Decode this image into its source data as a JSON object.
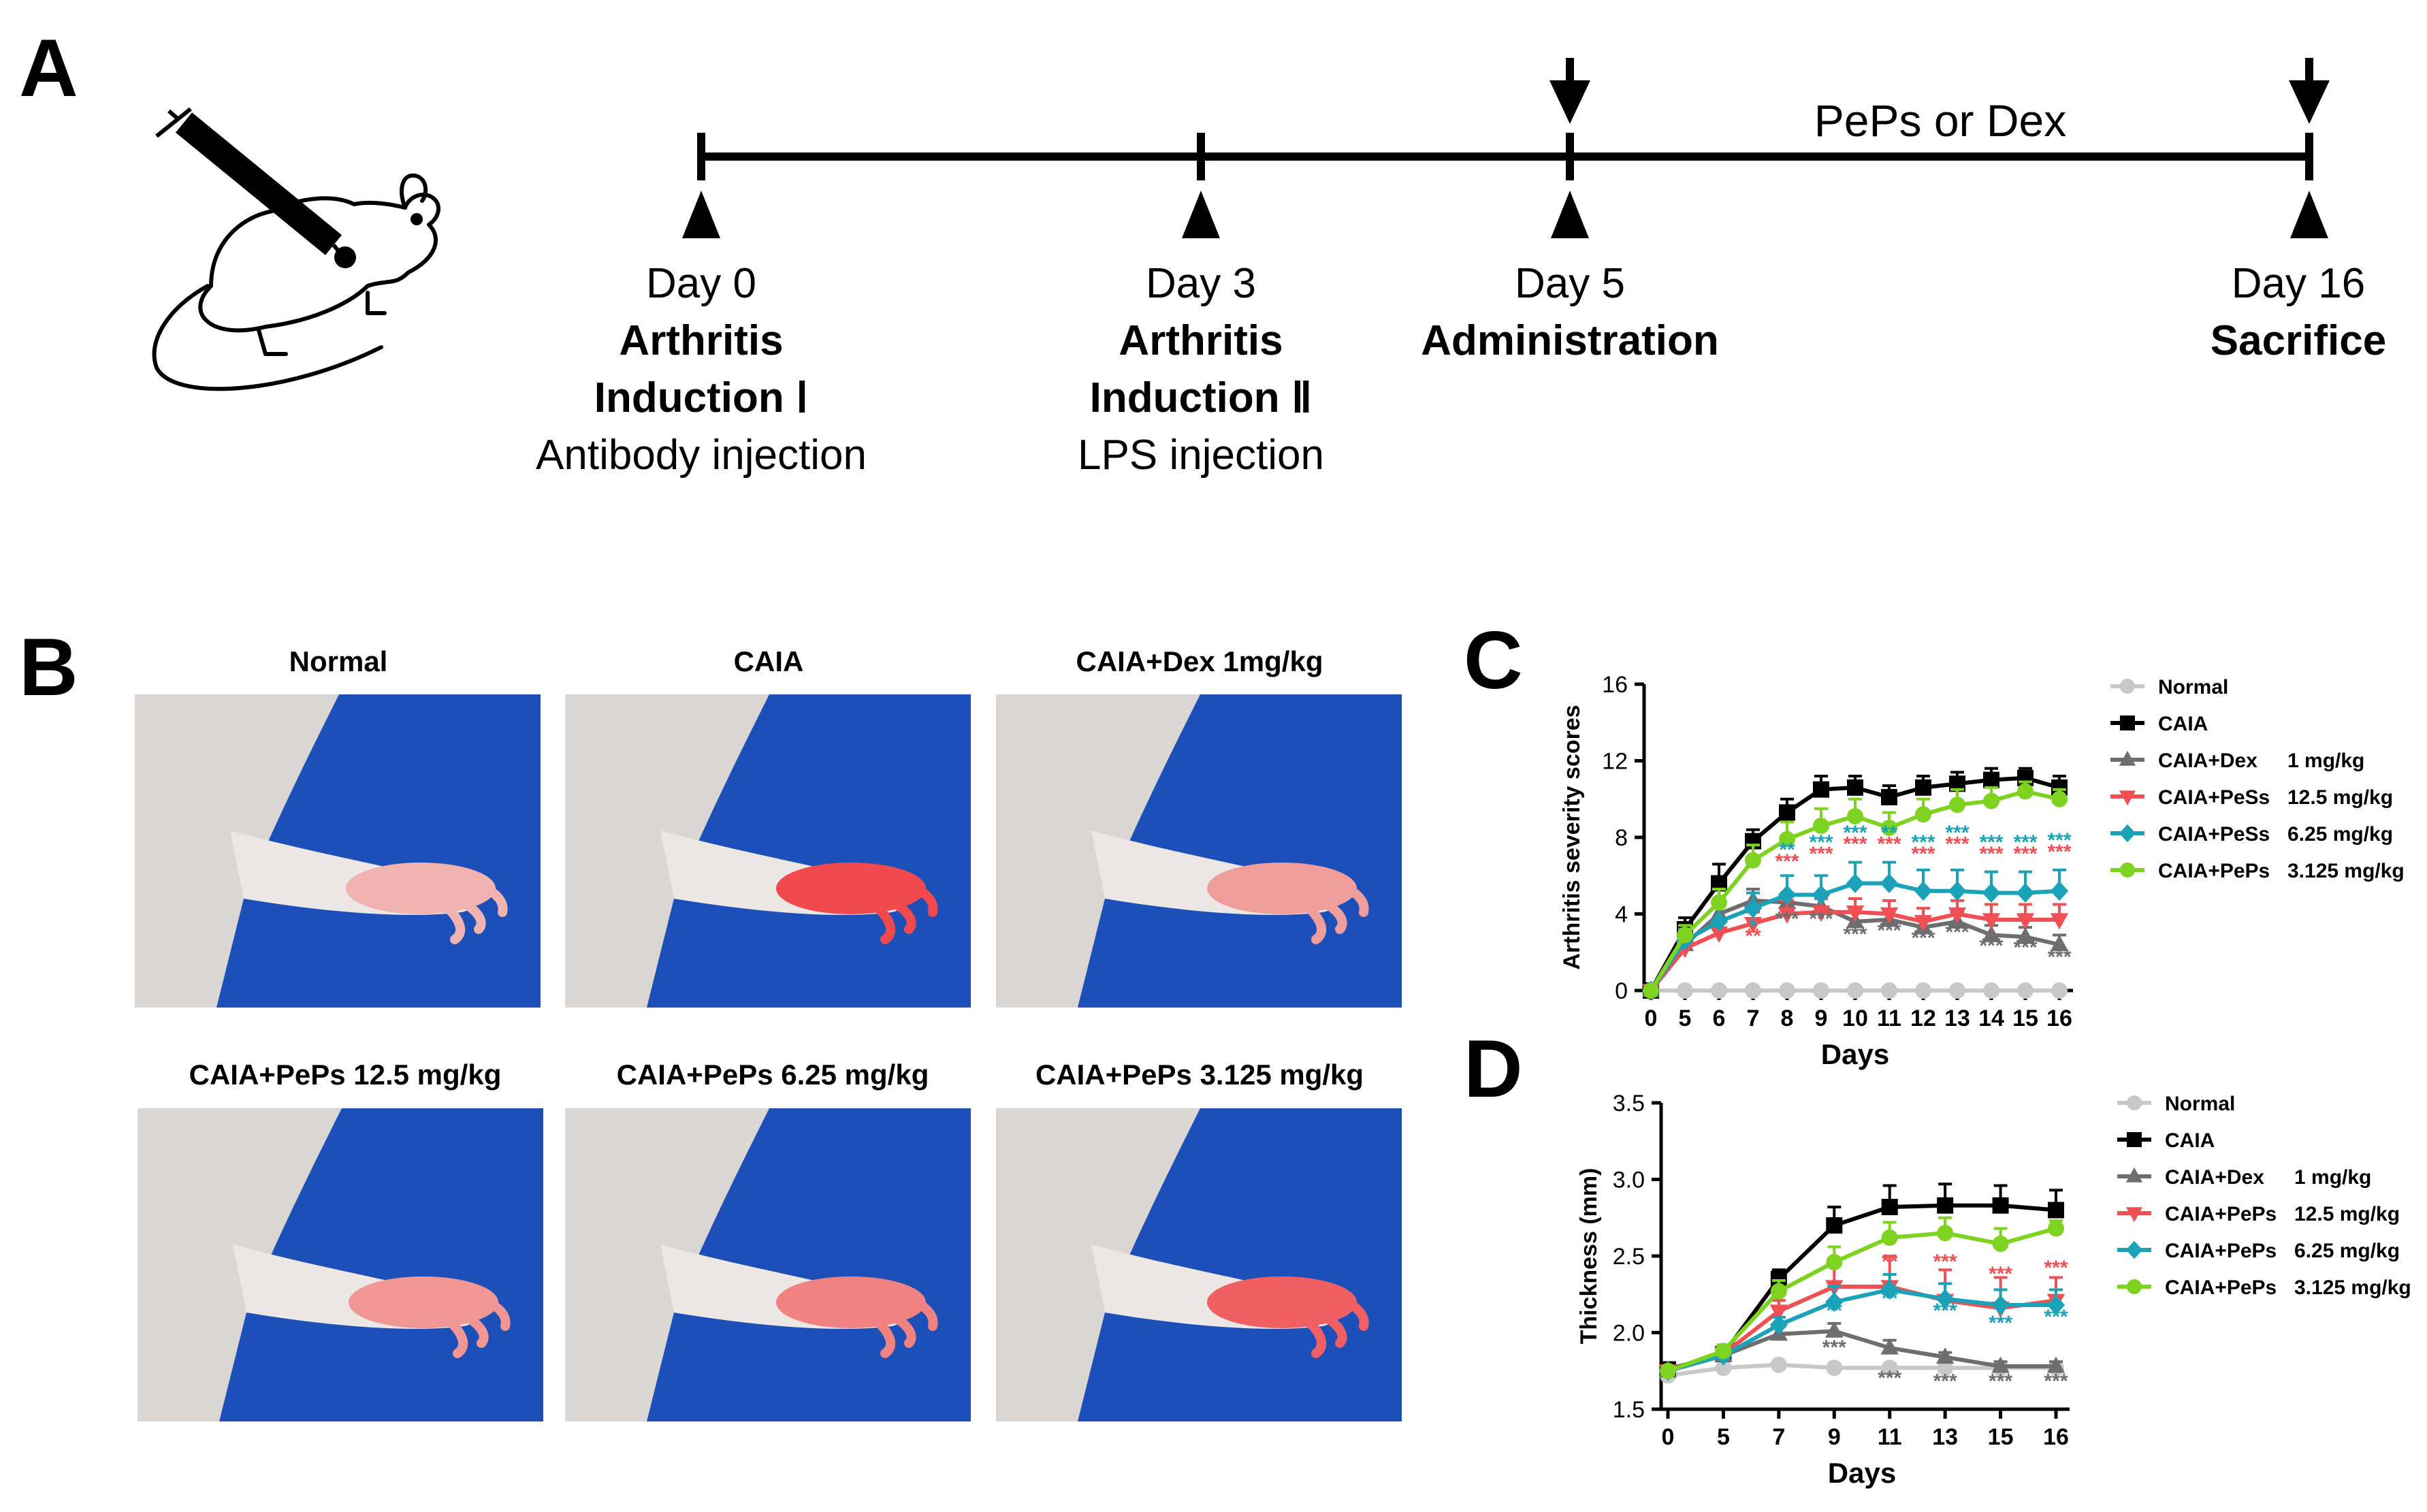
{
  "panel_labels": {
    "a": "A",
    "b": "B",
    "c": "C",
    "d": "D"
  },
  "timeline": {
    "between_label": "PePs or Dex",
    "events": [
      {
        "day": "Day 0",
        "line1": "Arthritis",
        "line2": "Induction Ⅰ",
        "line3": "Antibody injection"
      },
      {
        "day": "Day 3",
        "line1": "Arthritis",
        "line2": "Induction Ⅱ",
        "line3": "LPS injection"
      },
      {
        "day": "Day 5",
        "line1": "Administration",
        "line2": "",
        "line3": ""
      },
      {
        "day": "Day 16",
        "line1": "Sacrifice",
        "line2": "",
        "line3": ""
      }
    ]
  },
  "photos": [
    {
      "label": "Normal",
      "redness": 0.15
    },
    {
      "label": "CAIA",
      "redness": 0.9
    },
    {
      "label": "CAIA+Dex 1mg/kg",
      "redness": 0.3
    },
    {
      "label": "CAIA+PePs 12.5 mg/kg",
      "redness": 0.35
    },
    {
      "label": "CAIA+PePs 6.25 mg/kg",
      "redness": 0.5
    },
    {
      "label": "CAIA+PePs 3.125 mg/kg",
      "redness": 0.75
    }
  ],
  "colors": {
    "normal": "#c8c8c8",
    "caia": "#000000",
    "dex": "#6e6e6e",
    "high": "#f05054",
    "mid": "#1aa3b8",
    "low": "#7ed321",
    "blue_bg": "#1d4fb8"
  },
  "chart_data": [
    {
      "type": "line",
      "xlabel": "Days",
      "ylabel": "Arthritis severity scores",
      "x": [
        0,
        5,
        6,
        7,
        8,
        9,
        10,
        11,
        12,
        13,
        14,
        15,
        16
      ],
      "ylim": [
        0,
        16
      ],
      "yticks": [
        0,
        4,
        8,
        12,
        16
      ],
      "legend_position": "right",
      "series": [
        {
          "name": "Normal",
          "dose": "",
          "marker": "circle",
          "color": "#c8c8c8",
          "values": [
            0,
            0,
            0,
            0,
            0,
            0,
            0,
            0,
            0,
            0,
            0,
            0,
            0
          ],
          "err": [
            0,
            0,
            0,
            0,
            0,
            0,
            0,
            0,
            0,
            0,
            0,
            0,
            0
          ]
        },
        {
          "name": "CAIA",
          "dose": "",
          "marker": "square",
          "color": "#000000",
          "values": [
            0,
            3.2,
            5.6,
            7.8,
            9.3,
            10.5,
            10.6,
            10.1,
            10.6,
            10.8,
            11,
            11.1,
            10.6
          ],
          "err": [
            0,
            0.6,
            1,
            0.6,
            0.7,
            0.7,
            0.6,
            0.6,
            0.6,
            0.6,
            0.6,
            0.5,
            0.6
          ]
        },
        {
          "name": "CAIA+Dex",
          "dose": "1 mg/kg",
          "marker": "triangle-up",
          "color": "#6e6e6e",
          "values": [
            0,
            2.4,
            4.0,
            4.7,
            4.6,
            4.4,
            3.6,
            3.7,
            3.3,
            3.6,
            2.9,
            2.8,
            2.4
          ],
          "err": [
            0,
            0.5,
            0.7,
            0.6,
            0.5,
            0.5,
            0.5,
            0.5,
            0.5,
            0.5,
            0.5,
            0.5,
            0.5
          ]
        },
        {
          "name": "CAIA+PeSs",
          "dose": "12.5 mg/kg",
          "marker": "triangle-down",
          "color": "#f05054",
          "values": [
            0,
            2.2,
            3.0,
            3.5,
            4.0,
            4.1,
            4.1,
            4.0,
            3.6,
            4.0,
            3.7,
            3.7,
            3.7
          ],
          "err": [
            0,
            0.5,
            0.6,
            0.6,
            0.7,
            0.7,
            0.7,
            0.7,
            0.7,
            0.7,
            0.8,
            0.8,
            0.8
          ]
        },
        {
          "name": "CAIA+PeSs",
          "dose": "6.25 mg/kg",
          "marker": "diamond",
          "color": "#1aa3b8",
          "values": [
            0,
            2.6,
            3.6,
            4.3,
            5.0,
            5.0,
            5.6,
            5.6,
            5.2,
            5.2,
            5.1,
            5.1,
            5.2
          ],
          "err": [
            0,
            0.6,
            0.8,
            0.8,
            1.0,
            1.0,
            1.1,
            1.1,
            1.1,
            1.1,
            1.1,
            1.1,
            1.1
          ]
        },
        {
          "name": "CAIA+PePs",
          "dose": "3.125 mg/kg",
          "marker": "circle",
          "color": "#7ed321",
          "values": [
            0,
            2.9,
            4.6,
            6.8,
            7.9,
            8.6,
            9.1,
            8.5,
            9.2,
            9.7,
            9.9,
            10.4,
            10.0
          ],
          "err": [
            0,
            0.5,
            0.7,
            0.8,
            0.9,
            0.9,
            0.9,
            0.8,
            0.8,
            0.8,
            0.7,
            0.5,
            0.5
          ]
        }
      ],
      "significance": [
        {
          "x": 7,
          "y": 3.0,
          "text": "*",
          "color": "#1aa3b8"
        },
        {
          "x": 7,
          "y": 2.5,
          "text": "**",
          "color": "#f05054"
        },
        {
          "x": 8,
          "y": 7.0,
          "text": "**",
          "color": "#1aa3b8"
        },
        {
          "x": 8,
          "y": 6.4,
          "text": "***",
          "color": "#f05054"
        },
        {
          "x": 8,
          "y": 3.4,
          "text": "***",
          "color": "#6e6e6e"
        },
        {
          "x": 9,
          "y": 7.4,
          "text": "***",
          "color": "#1aa3b8"
        },
        {
          "x": 9,
          "y": 6.8,
          "text": "***",
          "color": "#f05054"
        },
        {
          "x": 9,
          "y": 3.4,
          "text": "***",
          "color": "#6e6e6e"
        },
        {
          "x": 10,
          "y": 7.9,
          "text": "***",
          "color": "#1aa3b8"
        },
        {
          "x": 10,
          "y": 7.3,
          "text": "***",
          "color": "#f05054"
        },
        {
          "x": 10,
          "y": 2.6,
          "text": "***",
          "color": "#6e6e6e"
        },
        {
          "x": 11,
          "y": 7.9,
          "text": "**",
          "color": "#1aa3b8"
        },
        {
          "x": 11,
          "y": 7.3,
          "text": "***",
          "color": "#f05054"
        },
        {
          "x": 11,
          "y": 2.8,
          "text": "***",
          "color": "#6e6e6e"
        },
        {
          "x": 12,
          "y": 7.4,
          "text": "***",
          "color": "#1aa3b8"
        },
        {
          "x": 12,
          "y": 6.8,
          "text": "***",
          "color": "#f05054"
        },
        {
          "x": 12,
          "y": 2.4,
          "text": "***",
          "color": "#6e6e6e"
        },
        {
          "x": 13,
          "y": 7.9,
          "text": "***",
          "color": "#1aa3b8"
        },
        {
          "x": 13,
          "y": 7.3,
          "text": "***",
          "color": "#f05054"
        },
        {
          "x": 13,
          "y": 2.7,
          "text": "***",
          "color": "#6e6e6e"
        },
        {
          "x": 14,
          "y": 7.4,
          "text": "***",
          "color": "#1aa3b8"
        },
        {
          "x": 14,
          "y": 6.8,
          "text": "***",
          "color": "#f05054"
        },
        {
          "x": 14,
          "y": 2.0,
          "text": "***",
          "color": "#6e6e6e"
        },
        {
          "x": 15,
          "y": 7.4,
          "text": "***",
          "color": "#1aa3b8"
        },
        {
          "x": 15,
          "y": 6.8,
          "text": "***",
          "color": "#f05054"
        },
        {
          "x": 15,
          "y": 1.9,
          "text": "***",
          "color": "#6e6e6e"
        },
        {
          "x": 16,
          "y": 7.5,
          "text": "***",
          "color": "#1aa3b8"
        },
        {
          "x": 16,
          "y": 6.9,
          "text": "***",
          "color": "#f05054"
        },
        {
          "x": 16,
          "y": 1.4,
          "text": "***",
          "color": "#6e6e6e"
        }
      ]
    },
    {
      "type": "line",
      "xlabel": "Days",
      "ylabel": "Thickness (mm)",
      "x": [
        0,
        5,
        7,
        9,
        11,
        13,
        15,
        16
      ],
      "ylim": [
        1.5,
        3.5
      ],
      "yticks": [
        1.5,
        2.0,
        2.5,
        3.0,
        3.5
      ],
      "legend_position": "right",
      "series": [
        {
          "name": "Normal",
          "dose": "",
          "marker": "circle",
          "color": "#c8c8c8",
          "values": [
            1.72,
            1.77,
            1.79,
            1.77,
            1.77,
            1.77,
            1.77,
            1.77
          ],
          "err": [
            0.02,
            0.02,
            0.02,
            0.02,
            0.02,
            0.02,
            0.02,
            0.02
          ]
        },
        {
          "name": "CAIA",
          "dose": "",
          "marker": "square",
          "color": "#000000",
          "values": [
            1.76,
            1.86,
            2.35,
            2.7,
            2.82,
            2.83,
            2.83,
            2.8
          ],
          "err": [
            0.02,
            0.04,
            0.06,
            0.12,
            0.14,
            0.14,
            0.13,
            0.13
          ]
        },
        {
          "name": "CAIA+Dex",
          "dose": "1 mg/kg",
          "marker": "triangle-up",
          "color": "#6e6e6e",
          "values": [
            1.75,
            1.85,
            1.99,
            2.01,
            1.9,
            1.84,
            1.78,
            1.78
          ],
          "err": [
            0.02,
            0.03,
            0.05,
            0.05,
            0.05,
            0.03,
            0.03,
            0.03
          ]
        },
        {
          "name": "CAIA+PePs",
          "dose": "12.5 mg/kg",
          "marker": "triangle-down",
          "color": "#f05054",
          "values": [
            1.75,
            1.86,
            2.14,
            2.3,
            2.3,
            2.21,
            2.16,
            2.21
          ],
          "err": [
            0.02,
            0.03,
            0.07,
            0.15,
            0.2,
            0.2,
            0.2,
            0.15
          ]
        },
        {
          "name": "CAIA+PePs",
          "dose": "6.25 mg/kg",
          "marker": "diamond",
          "color": "#1aa3b8",
          "values": [
            1.75,
            1.85,
            2.05,
            2.2,
            2.28,
            2.22,
            2.18,
            2.18
          ],
          "err": [
            0.02,
            0.03,
            0.05,
            0.1,
            0.1,
            0.1,
            0.1,
            0.1
          ]
        },
        {
          "name": "CAIA+PePs",
          "dose": "3.125 mg/kg",
          "marker": "circle",
          "color": "#7ed321",
          "values": [
            1.75,
            1.88,
            2.27,
            2.46,
            2.62,
            2.65,
            2.58,
            2.68
          ],
          "err": [
            0.02,
            0.04,
            0.07,
            0.1,
            0.1,
            0.1,
            0.1,
            0.05
          ]
        }
      ],
      "significance": [
        {
          "x": 9,
          "y": 2.1,
          "text": "**",
          "color": "#1aa3b8"
        },
        {
          "x": 9,
          "y": 1.86,
          "text": "***",
          "color": "#6e6e6e"
        },
        {
          "x": 11,
          "y": 2.42,
          "text": "**",
          "color": "#f05054"
        },
        {
          "x": 11,
          "y": 2.18,
          "text": "**",
          "color": "#1aa3b8"
        },
        {
          "x": 11,
          "y": 1.66,
          "text": "***",
          "color": "#6e6e6e"
        },
        {
          "x": 13,
          "y": 2.42,
          "text": "***",
          "color": "#f05054"
        },
        {
          "x": 13,
          "y": 2.1,
          "text": "***",
          "color": "#1aa3b8"
        },
        {
          "x": 13,
          "y": 1.64,
          "text": "***",
          "color": "#6e6e6e"
        },
        {
          "x": 15,
          "y": 2.34,
          "text": "***",
          "color": "#f05054"
        },
        {
          "x": 15,
          "y": 2.02,
          "text": "***",
          "color": "#1aa3b8"
        },
        {
          "x": 15,
          "y": 1.64,
          "text": "***",
          "color": "#6e6e6e"
        },
        {
          "x": 16,
          "y": 2.38,
          "text": "***",
          "color": "#f05054"
        },
        {
          "x": 16,
          "y": 2.06,
          "text": "***",
          "color": "#1aa3b8"
        },
        {
          "x": 16,
          "y": 1.64,
          "text": "***",
          "color": "#6e6e6e"
        }
      ]
    }
  ]
}
